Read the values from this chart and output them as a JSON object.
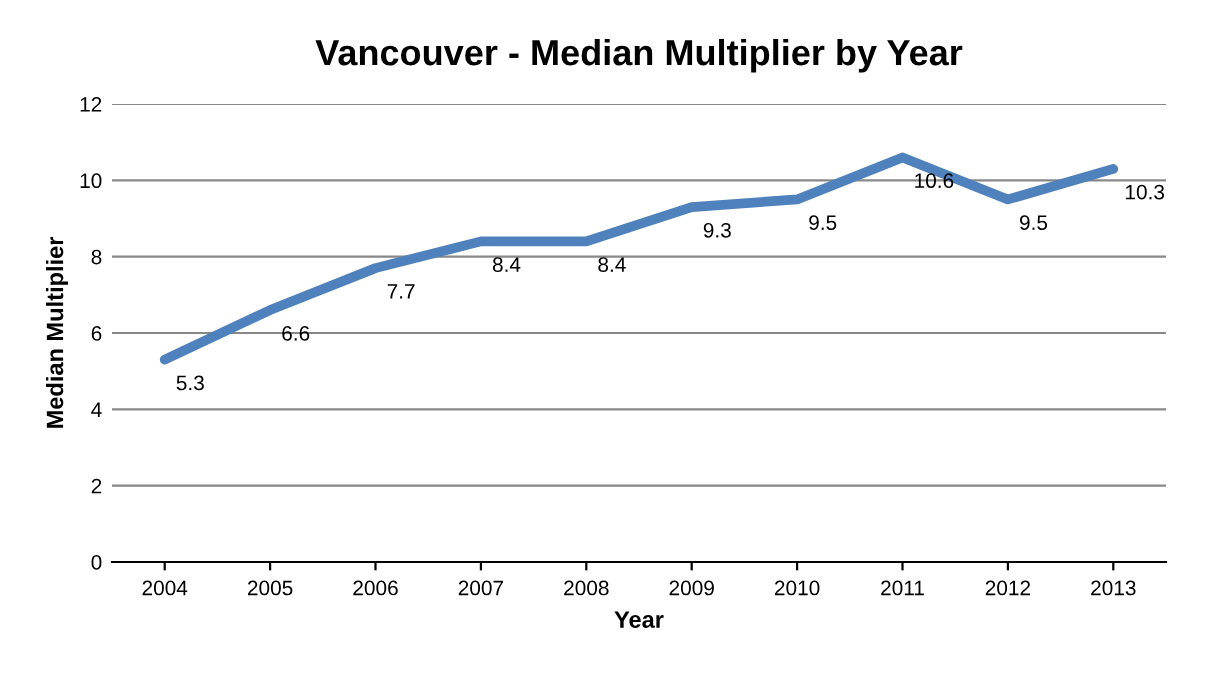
{
  "chart_data": {
    "type": "line",
    "title": "Vancouver - Median Multiplier by Year",
    "xlabel": "Year",
    "ylabel": "Median Multiplier",
    "categories": [
      "2004",
      "2005",
      "2006",
      "2007",
      "2008",
      "2009",
      "2010",
      "2011",
      "2012",
      "2013"
    ],
    "series": [
      {
        "color": "#4f81bd",
        "values": [
          5.3,
          6.6,
          7.7,
          8.4,
          8.4,
          9.3,
          9.5,
          10.6,
          9.5,
          10.3
        ]
      }
    ],
    "ylim": [
      0,
      12
    ],
    "yticks": [
      0,
      2,
      4,
      6,
      8,
      10,
      12
    ],
    "grid": "y",
    "data_labels": true,
    "marker": "none",
    "line_style": "solid"
  }
}
